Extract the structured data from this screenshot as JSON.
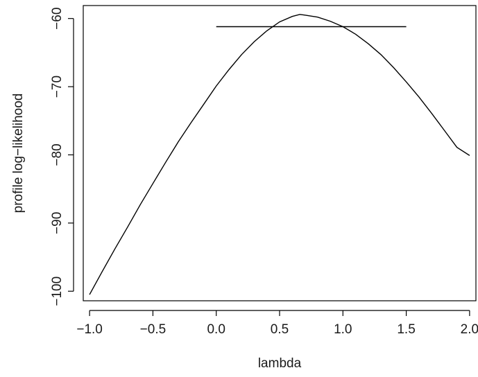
{
  "chart_data": {
    "type": "line",
    "title": "",
    "xlabel": "lambda",
    "ylabel": "profile log−likelihood",
    "xlim": [
      -1.05,
      2.05
    ],
    "ylim": [
      -101.4,
      -58.1
    ],
    "x_ticks": [
      -1.0,
      -0.5,
      0.0,
      0.5,
      1.0,
      1.5,
      2.0
    ],
    "x_tick_labels": [
      "−1.0",
      "−0.5",
      "0.0",
      "0.5",
      "1.0",
      "1.5",
      "2.0"
    ],
    "y_ticks": [
      -100,
      -90,
      -80,
      -70,
      -60
    ],
    "y_tick_labels": [
      "−100",
      "−90",
      "−80",
      "−70",
      "−60"
    ],
    "grid": false,
    "legend": "none",
    "series": [
      {
        "x": [
          -1.0,
          -0.9,
          -0.8,
          -0.7,
          -0.6,
          -0.5,
          -0.4,
          -0.3,
          -0.2,
          -0.1,
          0.0,
          0.1,
          0.2,
          0.3,
          0.4,
          0.5,
          0.6,
          0.66,
          0.7,
          0.8,
          0.9,
          1.0,
          1.1,
          1.2,
          1.3,
          1.4,
          1.5,
          1.6,
          1.7,
          1.8,
          1.9,
          2.0
        ],
        "y": [
          -100.5,
          -97.1,
          -93.8,
          -90.6,
          -87.3,
          -84.2,
          -81.1,
          -78.1,
          -75.3,
          -72.6,
          -69.9,
          -67.5,
          -65.3,
          -63.4,
          -61.8,
          -60.5,
          -59.7,
          -59.4,
          -59.5,
          -59.8,
          -60.4,
          -61.2,
          -62.3,
          -63.7,
          -65.3,
          -67.2,
          -69.3,
          -71.5,
          -73.9,
          -76.4,
          -78.9,
          -80.1
        ]
      }
    ],
    "hline": {
      "y": -61.2,
      "x_start": 0.0,
      "x_end": 1.5
    },
    "colors": {
      "line": "#000000",
      "axis": "#000000",
      "background": "#ffffff"
    }
  }
}
